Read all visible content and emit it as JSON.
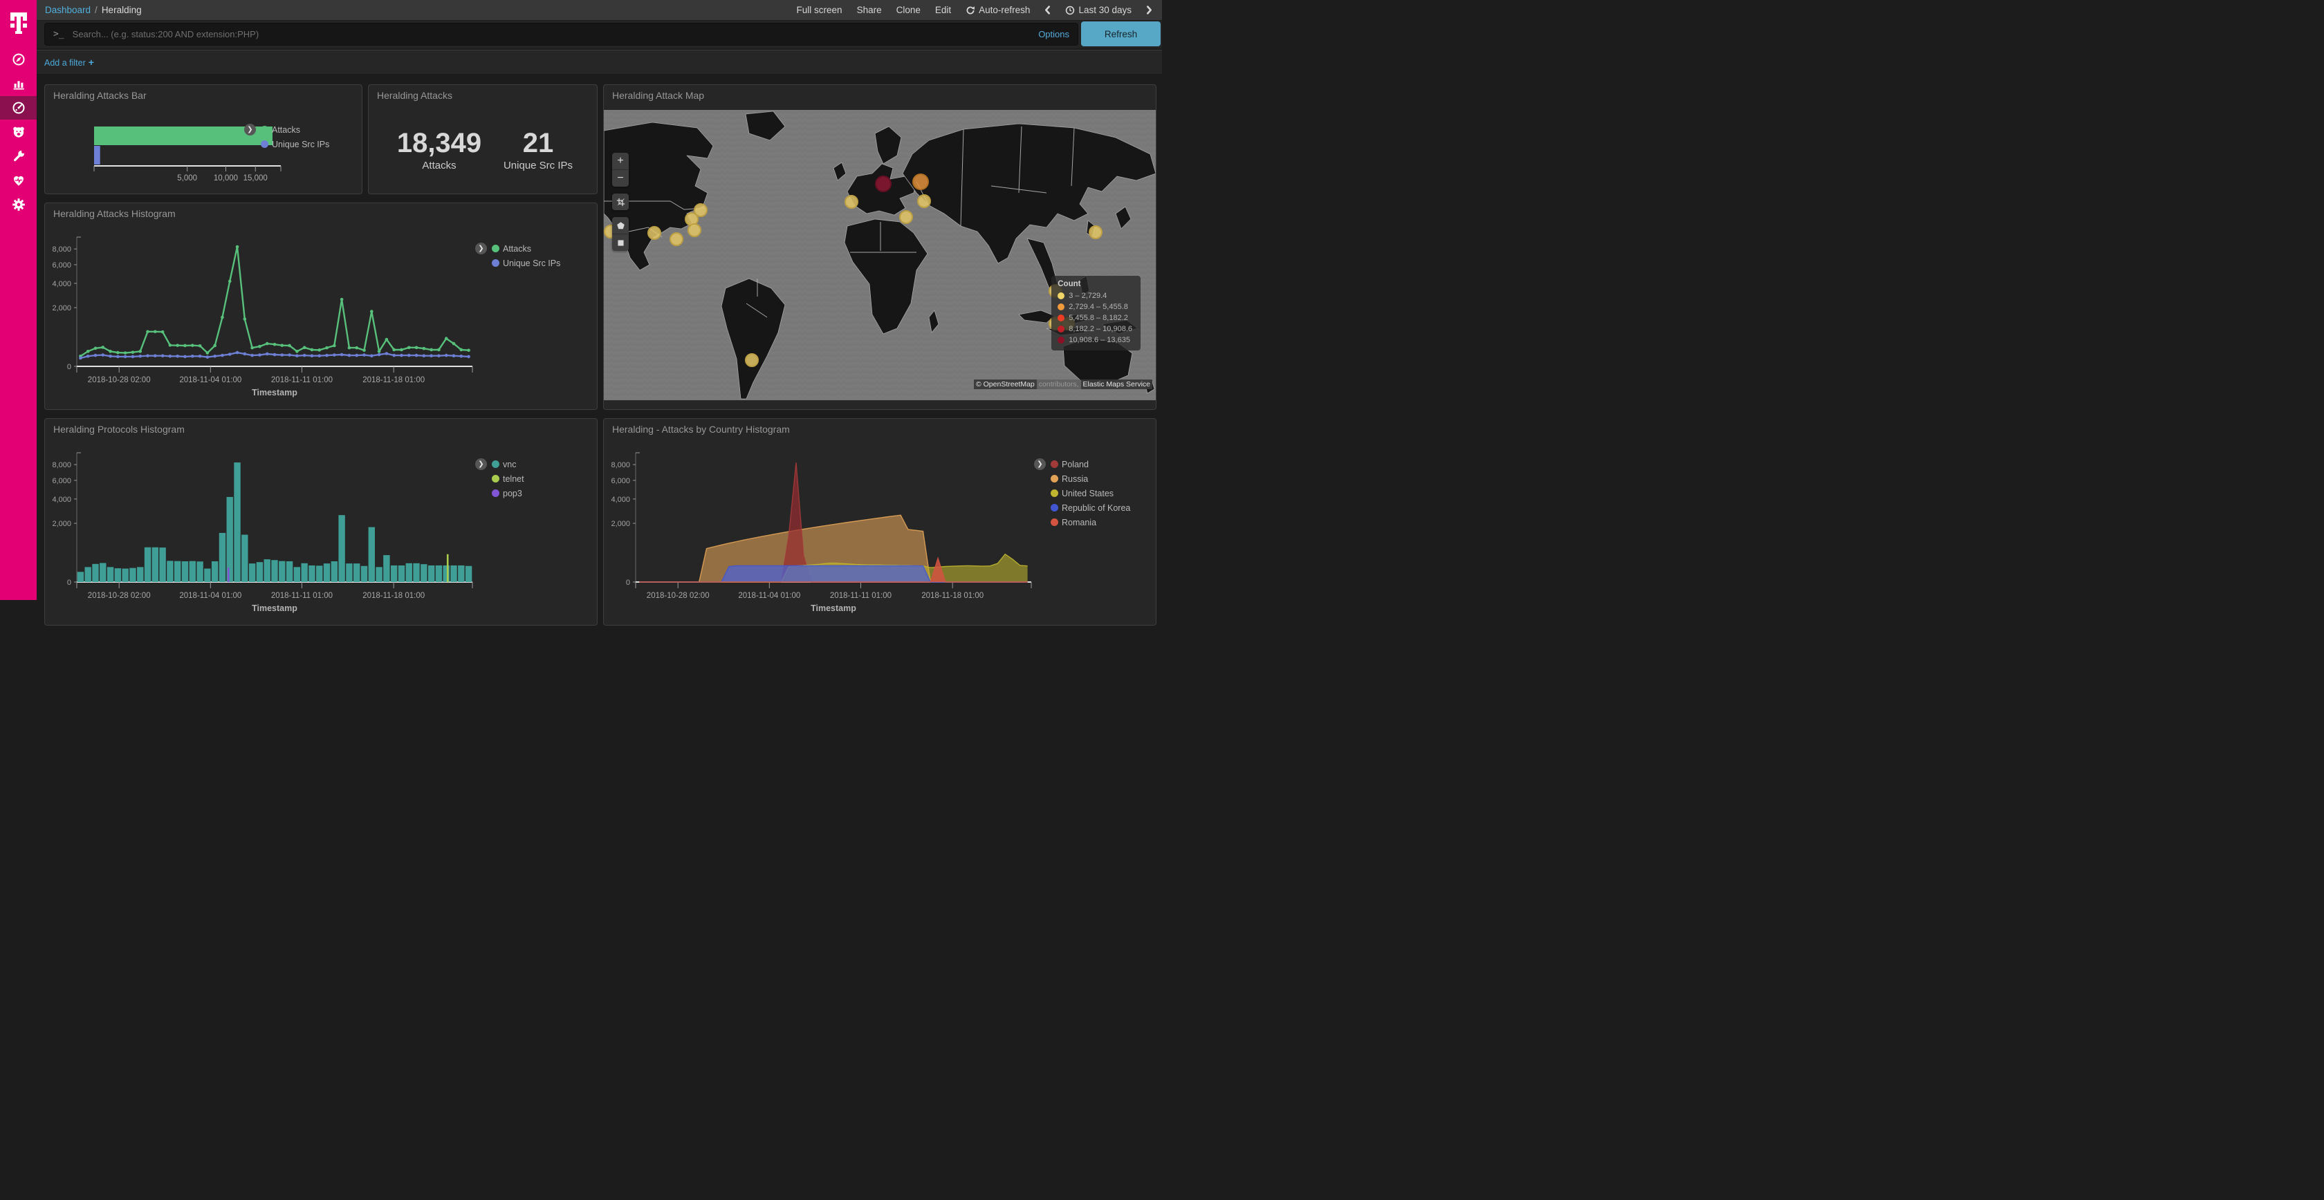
{
  "topbar": {
    "breadcrumb": {
      "root": "Dashboard",
      "separator": "/",
      "current": "Heralding"
    },
    "actions": {
      "full_screen": "Full screen",
      "share": "Share",
      "clone": "Clone",
      "edit": "Edit",
      "auto_refresh": "Auto-refresh",
      "time_range": "Last 30 days"
    }
  },
  "search": {
    "prompt": ">_",
    "placeholder": "Search... (e.g. status:200 AND extension:PHP)",
    "options": "Options",
    "refresh": "Refresh"
  },
  "filter_bar": {
    "add_filter": "Add a filter",
    "plus": "+"
  },
  "charts_ui": {
    "legend_toggle": "❯"
  },
  "panels": {
    "attacks_bar": {
      "title": "Heralding Attacks Bar"
    },
    "attacks_metric": {
      "title": "Heralding Attacks",
      "metrics": [
        {
          "value": "18,349",
          "label": "Attacks"
        },
        {
          "value": "21",
          "label": "Unique Src IPs"
        }
      ]
    },
    "attack_map": {
      "title": "Heralding Attack Map"
    },
    "attacks_histogram": {
      "title": "Heralding Attacks Histogram"
    },
    "protocols_histogram": {
      "title": "Heralding Protocols Histogram"
    },
    "country_histogram": {
      "title": "Heralding - Attacks by Country Histogram"
    }
  },
  "map": {
    "controls": [
      {
        "id": "zoom-in",
        "glyph": "+"
      },
      {
        "id": "zoom-out",
        "glyph": "−"
      },
      {
        "id": "crop"
      },
      {
        "id": "draw-polygon"
      },
      {
        "id": "draw-rect"
      }
    ],
    "legend": {
      "title": "Count",
      "items": [
        {
          "label": "3 – 2,729.4",
          "color": "#efd468"
        },
        {
          "label": "2,729.4 – 5,455.8",
          "color": "#ef9a3b"
        },
        {
          "label": "5,455.8 – 8,182.2",
          "color": "#ee3c25"
        },
        {
          "label": "8,182.2 – 10,908.6",
          "color": "#c11f28"
        },
        {
          "label": "10,908.6 – 13,635",
          "color": "#8c1126"
        }
      ]
    },
    "attribution": {
      "osm": "© OpenStreetMap",
      "contributors": "contributors,",
      "service": "Elastic Maps Service"
    },
    "marker_styles": {
      "low": {
        "fill": "#e4c766",
        "stroke": "#bda044",
        "r": 9
      },
      "mid": {
        "fill": "#e0913d",
        "stroke": "#b06f21",
        "r": 11
      },
      "max": {
        "fill": "#8c1733",
        "stroke": "#650f24",
        "r": 11
      }
    },
    "markers": [
      {
        "x": 10,
        "y": 176,
        "tier": "low"
      },
      {
        "x": 73,
        "y": 178,
        "tier": "low"
      },
      {
        "x": 105,
        "y": 187,
        "tier": "low"
      },
      {
        "x": 140,
        "y": 145,
        "tier": "low"
      },
      {
        "x": 127,
        "y": 158,
        "tier": "low"
      },
      {
        "x": 131,
        "y": 174,
        "tier": "low"
      },
      {
        "x": 214,
        "y": 362,
        "tier": "low"
      },
      {
        "x": 358,
        "y": 133,
        "tier": "low"
      },
      {
        "x": 404,
        "y": 107,
        "tier": "max"
      },
      {
        "x": 458,
        "y": 104,
        "tier": "mid"
      },
      {
        "x": 463,
        "y": 132,
        "tier": "low"
      },
      {
        "x": 437,
        "y": 155,
        "tier": "low"
      },
      {
        "x": 711,
        "y": 177,
        "tier": "low"
      },
      {
        "x": 653,
        "y": 262,
        "tier": "low"
      },
      {
        "x": 653,
        "y": 309,
        "tier": "low"
      },
      {
        "x": 671,
        "y": 309,
        "tier": "low"
      }
    ]
  },
  "chart_data": [
    {
      "id": "attacks-bar",
      "panel": "attacks_bar",
      "type": "hbar",
      "scale": "sqrt",
      "xmax": 20100,
      "xticks": [
        {
          "v": 5000,
          "label": "5,000"
        },
        {
          "v": 10000,
          "label": "10,000"
        },
        {
          "v": 15000,
          "label": "15,000"
        }
      ],
      "series": [
        {
          "name": "Attacks",
          "color": "#57c17b",
          "value": 18349
        },
        {
          "name": "Unique Src IPs",
          "color": "#6e7fd6",
          "value": 21
        }
      ]
    },
    {
      "id": "attacks-histogram",
      "panel": "attacks_histogram",
      "type": "line",
      "scale": "sqrt",
      "ymax": 8300,
      "xlabel": "Timestamp",
      "yticks": [
        {
          "v": 0,
          "label": "0"
        },
        {
          "v": 2000,
          "label": "2,000"
        },
        {
          "v": 4000,
          "label": "4,000"
        },
        {
          "v": 6000,
          "label": "6,000"
        },
        {
          "v": 8000,
          "label": "8,000"
        }
      ],
      "xticks": [
        {
          "pos": 0.107,
          "label": "2018-10-28 02:00"
        },
        {
          "pos": 0.338,
          "label": "2018-11-04 01:00"
        },
        {
          "pos": 0.569,
          "label": "2018-11-11 01:00"
        },
        {
          "pos": 0.801,
          "label": "2018-11-18 01:00"
        }
      ],
      "series": [
        {
          "name": "Attacks",
          "color": "#57c17b",
          "values": [
            60,
            130,
            190,
            210,
            130,
            110,
            105,
            115,
            130,
            700,
            700,
            690,
            260,
            255,
            250,
            255,
            245,
            105,
            250,
            1400,
            4200,
            8300,
            1300,
            200,
            230,
            300,
            280,
            255,
            250,
            130,
            205,
            160,
            155,
            200,
            250,
            2600,
            200,
            200,
            150,
            1750,
            130,
            420,
            160,
            160,
            205,
            205,
            185,
            160,
            160,
            450,
            300,
            160,
            150
          ]
        },
        {
          "name": "Unique Src IPs",
          "color": "#6e7fd6",
          "values": [
            40,
            60,
            70,
            75,
            60,
            55,
            55,
            55,
            60,
            65,
            65,
            65,
            60,
            60,
            55,
            60,
            60,
            50,
            60,
            70,
            85,
            110,
            90,
            70,
            75,
            90,
            80,
            75,
            75,
            65,
            70,
            65,
            65,
            70,
            75,
            80,
            70,
            70,
            75,
            65,
            80,
            95,
            70,
            70,
            70,
            70,
            65,
            65,
            65,
            70,
            65,
            60,
            55
          ]
        }
      ]
    },
    {
      "id": "protocols-histogram",
      "panel": "protocols_histogram",
      "type": "bars",
      "scale": "sqrt",
      "ymax": 8300,
      "xlabel": "Timestamp",
      "yticks": [
        {
          "v": 0,
          "label": "0"
        },
        {
          "v": 2000,
          "label": "2,000"
        },
        {
          "v": 4000,
          "label": "4,000"
        },
        {
          "v": 6000,
          "label": "6,000"
        },
        {
          "v": 8000,
          "label": "8,000"
        }
      ],
      "xticks": [
        {
          "pos": 0.107,
          "label": "2018-10-28 02:00"
        },
        {
          "pos": 0.338,
          "label": "2018-11-04 01:00"
        },
        {
          "pos": 0.569,
          "label": "2018-11-11 01:00"
        },
        {
          "pos": 0.801,
          "label": "2018-11-18 01:00"
        }
      ],
      "series": [
        {
          "name": "vnc",
          "color": "#3f9e96",
          "values": [
            60,
            130,
            190,
            210,
            130,
            110,
            105,
            115,
            130,
            700,
            700,
            690,
            260,
            255,
            250,
            255,
            245,
            105,
            250,
            1400,
            4200,
            8300,
            1300,
            200,
            230,
            300,
            280,
            255,
            250,
            130,
            205,
            160,
            155,
            200,
            250,
            2600,
            200,
            200,
            150,
            1750,
            130,
            420,
            160,
            160,
            205,
            205,
            185,
            160,
            160,
            160,
            160,
            160,
            150
          ]
        },
        {
          "name": "telnet",
          "color": "#a9cc4e",
          "values": [
            0,
            0,
            0,
            0,
            0,
            0,
            0,
            0,
            0,
            0,
            0,
            0,
            0,
            0,
            0,
            0,
            0,
            0,
            0,
            0,
            0,
            0,
            0,
            0,
            0,
            0,
            0,
            0,
            0,
            0,
            0,
            0,
            0,
            0,
            0,
            0,
            0,
            0,
            0,
            0,
            0,
            0,
            0,
            0,
            0,
            0,
            0,
            0,
            0,
            450,
            0,
            0,
            0
          ]
        },
        {
          "name": "pop3",
          "color": "#8055d6",
          "values": [
            0,
            0,
            0,
            0,
            0,
            0,
            0,
            0,
            0,
            0,
            0,
            0,
            0,
            0,
            0,
            0,
            0,
            0,
            0,
            0,
            120,
            0,
            0,
            0,
            0,
            0,
            0,
            0,
            0,
            0,
            0,
            0,
            0,
            0,
            0,
            0,
            0,
            0,
            0,
            0,
            0,
            0,
            0,
            0,
            0,
            0,
            0,
            0,
            0,
            0,
            0,
            0,
            0
          ]
        }
      ]
    },
    {
      "id": "country-histogram",
      "panel": "country_histogram",
      "type": "area",
      "scale": "sqrt",
      "ymax": 8300,
      "xlabel": "Timestamp",
      "yticks": [
        {
          "v": 0,
          "label": "0"
        },
        {
          "v": 2000,
          "label": "2,000"
        },
        {
          "v": 4000,
          "label": "4,000"
        },
        {
          "v": 6000,
          "label": "6,000"
        },
        {
          "v": 8000,
          "label": "8,000"
        }
      ],
      "xticks": [
        {
          "pos": 0.107,
          "label": "2018-10-28 02:00"
        },
        {
          "pos": 0.338,
          "label": "2018-11-04 01:00"
        },
        {
          "pos": 0.569,
          "label": "2018-11-11 01:00"
        },
        {
          "pos": 0.801,
          "label": "2018-11-18 01:00"
        }
      ],
      "series": [
        {
          "name": "Poland",
          "color": "#a33a3a",
          "fill": "rgba(150,45,48,0.72)",
          "z": 2,
          "values": [
            0,
            0,
            0,
            0,
            0,
            0,
            0,
            0,
            0,
            0,
            0,
            0,
            0,
            0,
            0,
            0,
            0,
            0,
            0,
            0,
            1200,
            8300,
            400,
            0,
            0,
            0,
            0,
            0,
            0,
            0,
            0,
            0,
            0,
            0,
            0,
            0,
            0,
            0,
            0,
            0,
            0,
            0,
            0,
            0,
            0,
            0,
            0,
            0,
            0,
            0,
            0,
            0,
            0
          ]
        },
        {
          "name": "Russia",
          "color": "#e2a357",
          "fill": "rgba(222,160,86,0.6)",
          "z": 1,
          "values": [
            0,
            0,
            0,
            0,
            0,
            0,
            0,
            0,
            0,
            650,
            725,
            800,
            875,
            950,
            1025,
            1100,
            1175,
            1250,
            1325,
            1400,
            1475,
            1550,
            1625,
            1700,
            1775,
            1850,
            1925,
            2000,
            2075,
            2150,
            2225,
            2300,
            2375,
            2450,
            2525,
            2600,
            1600,
            1550,
            1500,
            0,
            0,
            0,
            0,
            0,
            0,
            0,
            0,
            0,
            0,
            0,
            0,
            0,
            0
          ]
        },
        {
          "name": "United States",
          "color": "#c0b52f",
          "fill": "rgba(186,176,47,0.6)",
          "z": 3,
          "values": [
            0,
            0,
            0,
            0,
            0,
            0,
            0,
            0,
            0,
            0,
            0,
            0,
            0,
            0,
            0,
            0,
            0,
            0,
            0,
            0,
            130,
            150,
            160,
            170,
            180,
            200,
            210,
            200,
            190,
            180,
            175,
            170,
            170,
            165,
            165,
            160,
            160,
            155,
            150,
            120,
            130,
            140,
            145,
            150,
            155,
            150,
            145,
            150,
            200,
            450,
            300,
            160,
            150
          ]
        },
        {
          "name": "Republic of Korea",
          "color": "#4156d0",
          "fill": "rgba(77,97,209,0.75)",
          "z": 4,
          "values": [
            0,
            0,
            0,
            0,
            0,
            0,
            0,
            0,
            0,
            0,
            0,
            0,
            140,
            155,
            155,
            155,
            155,
            155,
            155,
            155,
            155,
            155,
            155,
            155,
            155,
            155,
            155,
            155,
            155,
            155,
            155,
            155,
            155,
            155,
            155,
            155,
            155,
            155,
            150,
            0,
            0,
            0,
            0,
            0,
            0,
            0,
            0,
            0,
            0,
            0,
            0,
            0,
            0
          ]
        },
        {
          "name": "Romania",
          "color": "#d25441",
          "fill": "rgba(210,84,65,0.85)",
          "z": 5,
          "values": [
            0,
            0,
            0,
            0,
            0,
            0,
            0,
            0,
            0,
            0,
            0,
            0,
            0,
            0,
            0,
            0,
            0,
            0,
            0,
            0,
            0,
            0,
            0,
            0,
            0,
            0,
            0,
            0,
            0,
            0,
            0,
            0,
            0,
            0,
            0,
            0,
            0,
            0,
            0,
            0,
            330,
            0,
            0,
            0,
            0,
            0,
            0,
            0,
            0,
            0,
            0,
            0,
            0
          ]
        }
      ]
    }
  ]
}
